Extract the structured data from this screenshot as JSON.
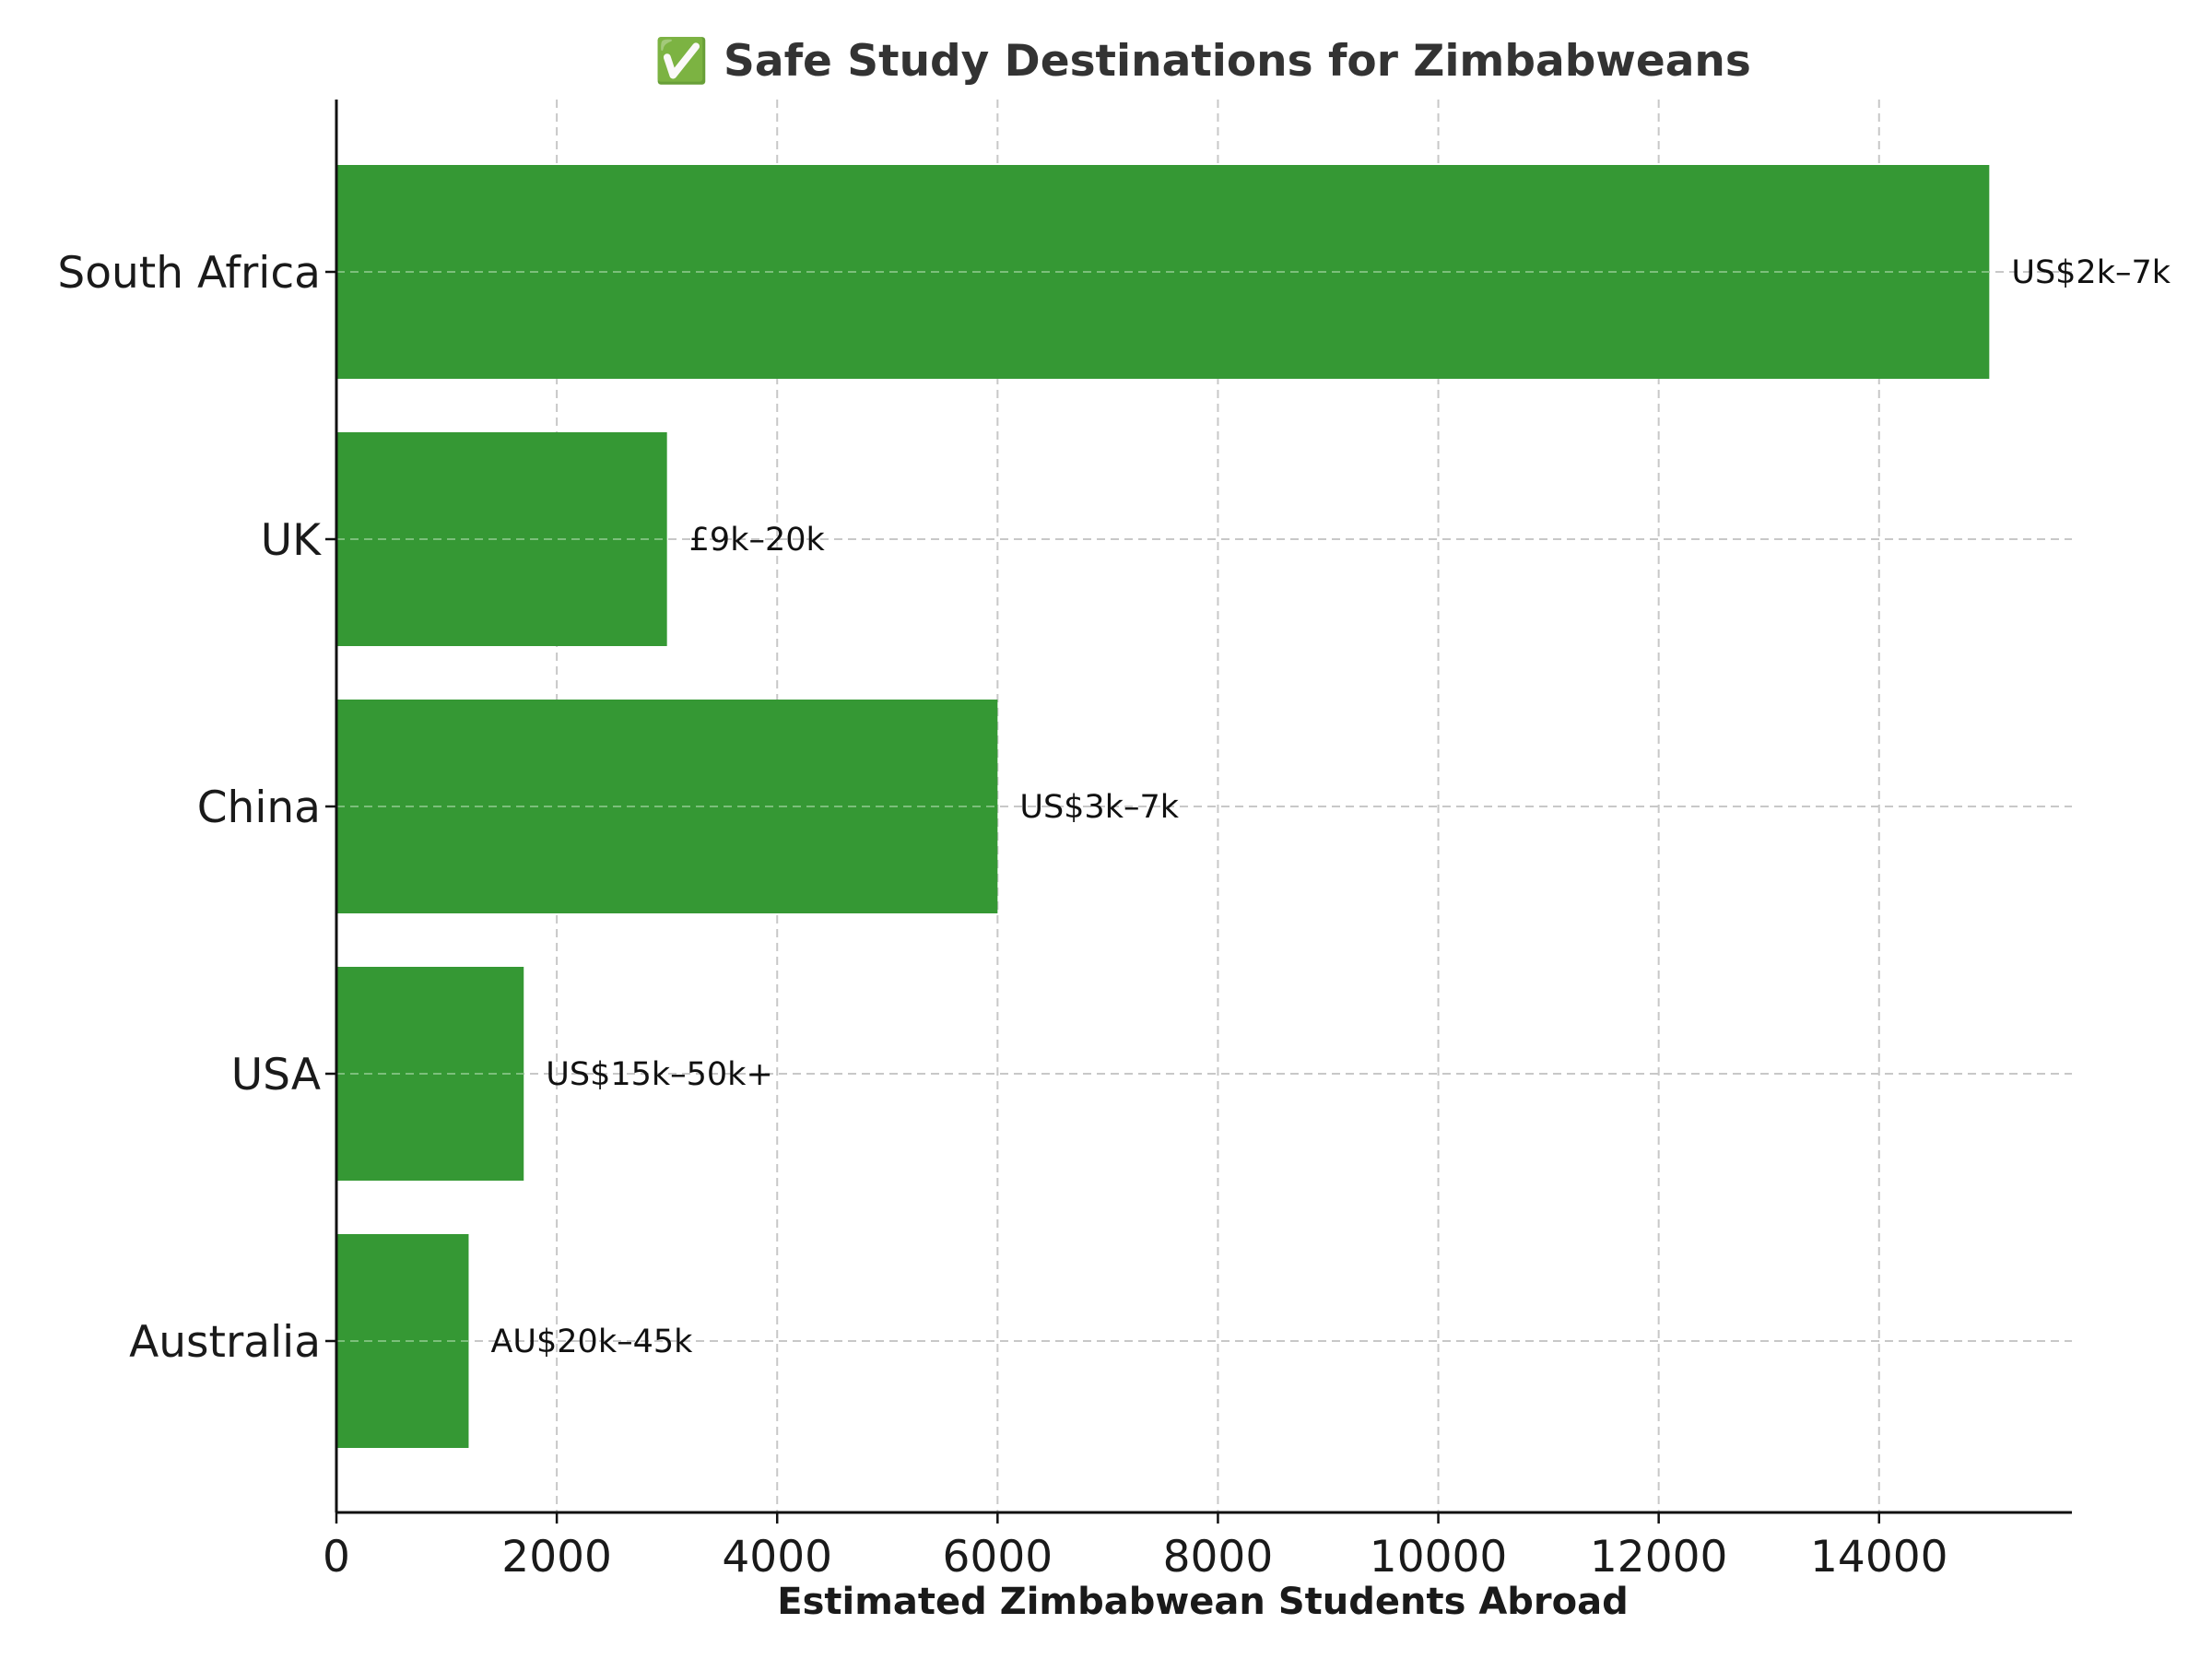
{
  "chart_data": {
    "type": "bar",
    "orientation": "horizontal",
    "title": "✅ Safe Study Destinations for Zimbabweans",
    "title_icon": "check-mark-icon",
    "xlabel": "Estimated Zimbabwean Students Abroad",
    "ylabel": "",
    "categories": [
      "South Africa",
      "UK",
      "China",
      "USA",
      "Australia"
    ],
    "values": [
      15000,
      3000,
      6000,
      1700,
      1200
    ],
    "value_labels": [
      "US$2k–7k",
      "£9k–20k",
      "US$3k–7k",
      "US$15k–50k+",
      "AU$20k–45k"
    ],
    "xlim": [
      0,
      15750
    ],
    "xticks": [
      0,
      2000,
      4000,
      6000,
      8000,
      10000,
      12000,
      14000
    ],
    "grid": true,
    "bar_color": "#359834"
  }
}
